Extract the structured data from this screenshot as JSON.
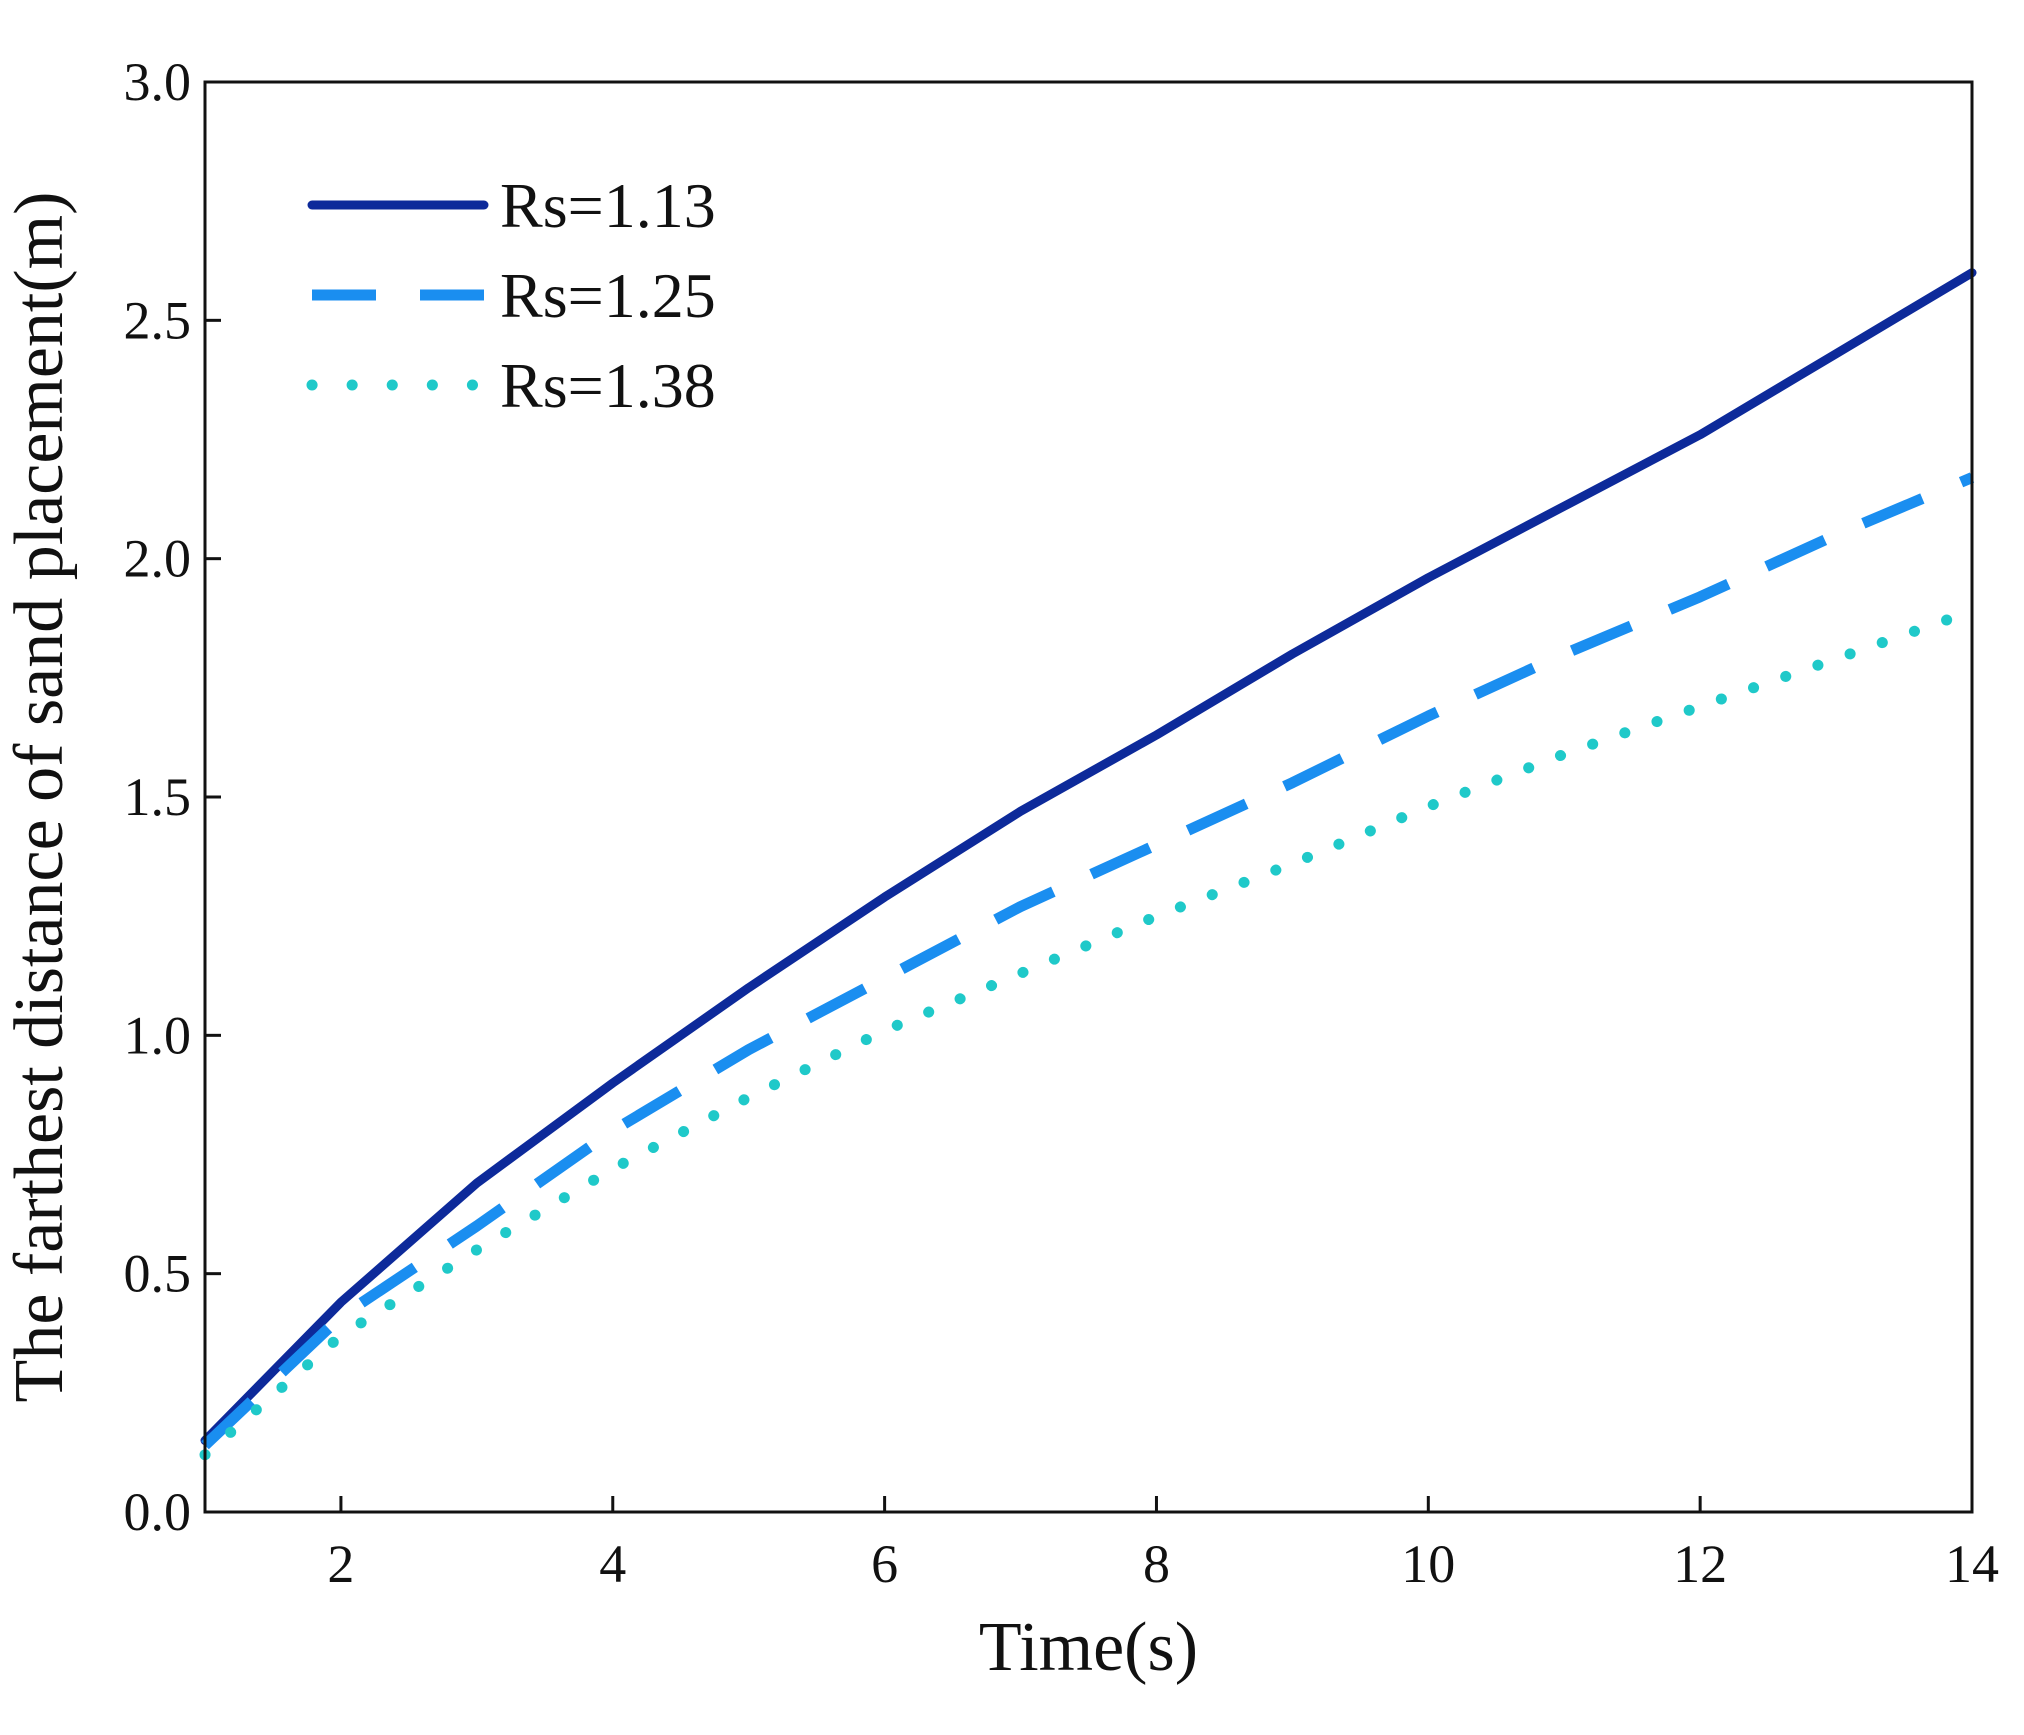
{
  "chart_data": {
    "type": "line",
    "title": "",
    "xlabel": "Time(s)",
    "ylabel": "The farthest distance of sand placement(m)",
    "xlim": [
      1,
      14
    ],
    "ylim": [
      0,
      3.0
    ],
    "xticks": [
      2,
      4,
      6,
      8,
      10,
      12,
      14
    ],
    "yticks": [
      0.0,
      0.5,
      1.0,
      1.5,
      2.0,
      2.5,
      3.0
    ],
    "xtick_labels": [
      "2",
      "4",
      "6",
      "8",
      "10",
      "12",
      "14"
    ],
    "ytick_labels": [
      "0.0",
      "0.5",
      "1.0",
      "1.5",
      "2.0",
      "2.5",
      "3.0"
    ],
    "legend_position": "top-left",
    "x": [
      1,
      2,
      3,
      4,
      5,
      6,
      7,
      8,
      9,
      10,
      11,
      12,
      13,
      14
    ],
    "series": [
      {
        "name": "Rs=1.13",
        "label": "Rs=1.13",
        "style": "solid",
        "color": "#0d2a9a",
        "values": [
          0.15,
          0.44,
          0.69,
          0.9,
          1.1,
          1.29,
          1.47,
          1.63,
          1.8,
          1.96,
          2.11,
          2.26,
          2.43,
          2.6
        ]
      },
      {
        "name": "Rs=1.25",
        "label": "Rs=1.25",
        "style": "dashed",
        "color": "#1a8ef0",
        "values": [
          0.14,
          0.41,
          0.6,
          0.8,
          0.97,
          1.12,
          1.27,
          1.4,
          1.53,
          1.67,
          1.8,
          1.92,
          2.05,
          2.17
        ]
      },
      {
        "name": "Rs=1.38",
        "label": "Rs=1.38",
        "style": "dotted",
        "color": "#1fc9c9",
        "values": [
          0.12,
          0.37,
          0.55,
          0.72,
          0.87,
          1.01,
          1.13,
          1.25,
          1.36,
          1.48,
          1.59,
          1.69,
          1.79,
          1.89
        ]
      }
    ]
  }
}
